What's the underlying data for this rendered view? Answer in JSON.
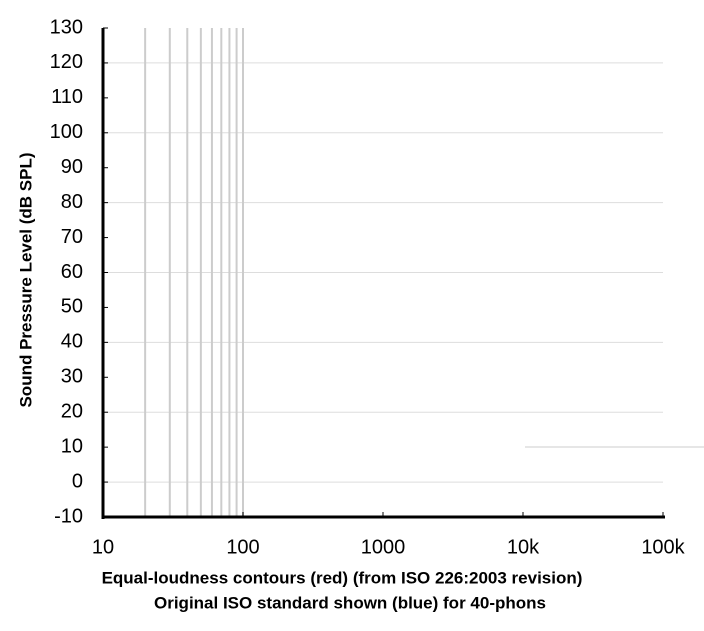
{
  "chart_data": {
    "type": "line",
    "xlabel": [
      "Equal-loudness contours (red) (from ISO 226:2003 revision)",
      "Original ISO standard shown (blue) for 40-phons"
    ],
    "ylabel": "Sound Pressure Level (dB SPL)",
    "xscale": "log",
    "xlim": [
      10,
      100000
    ],
    "xticks": [
      10,
      100,
      1000,
      {
        "value": 10000,
        "label": "10k"
      },
      {
        "value": 100000,
        "label": "100k"
      }
    ],
    "x_minor_grid": [
      20,
      30,
      40,
      50,
      60,
      70,
      80,
      90,
      100
    ],
    "ylim": [
      -10,
      130
    ],
    "yticks": [
      -10,
      0,
      10,
      20,
      30,
      40,
      50,
      60,
      70,
      80,
      90,
      100,
      110,
      120,
      130
    ],
    "ygrid": [
      0,
      20,
      40,
      60,
      80,
      100,
      120
    ],
    "series": []
  }
}
